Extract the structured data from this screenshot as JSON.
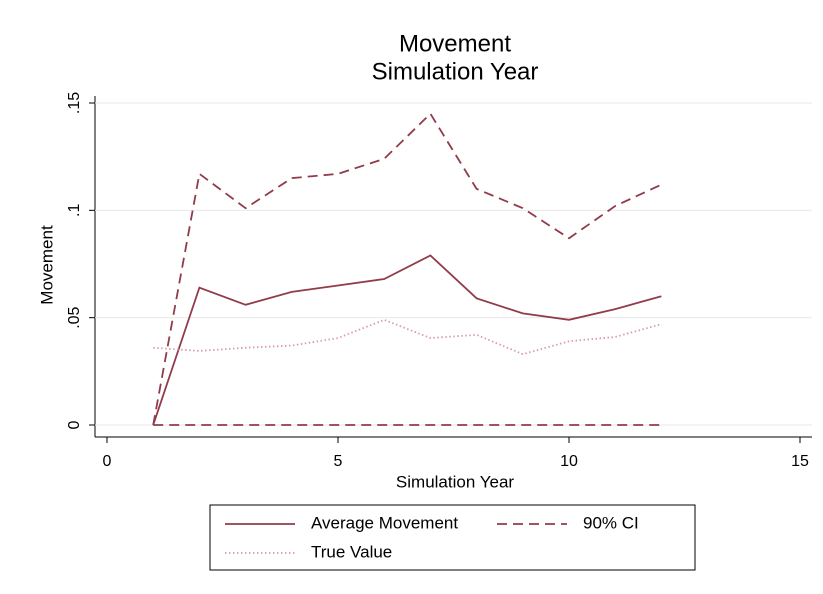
{
  "chart_data": {
    "type": "line",
    "title": "Movement",
    "subtitle": "Simulation Year",
    "x_label": "Simulation Year",
    "y_label": "Movement",
    "x": [
      1,
      2,
      3,
      4,
      5,
      6,
      7,
      8,
      9,
      10,
      11,
      12
    ],
    "series": [
      {
        "name": "Average Movement",
        "color": "#913c4a",
        "dash": "solid",
        "values": [
          0,
          0.064,
          0.056,
          0.062,
          0.065,
          0.068,
          0.079,
          0.059,
          0.052,
          0.049,
          0.054,
          0.06
        ]
      },
      {
        "name": "90% CI",
        "color": "#913c4a",
        "dash": "dash",
        "values": [
          0,
          0.117,
          0.101,
          0.115,
          0.117,
          0.124,
          0.145,
          0.11,
          0.101,
          0.087,
          0.102,
          0.112
        ],
        "lower": [
          0,
          0,
          0,
          0,
          0,
          0,
          0,
          0,
          0,
          0,
          0,
          0
        ]
      },
      {
        "name": "True Value",
        "color": "#d99ca4",
        "dash": "dot",
        "values": [
          0.036,
          0.0345,
          0.036,
          0.037,
          0.0405,
          0.049,
          0.0405,
          0.042,
          0.033,
          0.039,
          0.041,
          0.047
        ]
      }
    ],
    "xlim": [
      0,
      15
    ],
    "xticks": [
      0,
      5,
      10,
      15
    ],
    "ylim": [
      0,
      0.15
    ],
    "yticks": [
      0,
      {
        "value": 0.05,
        "label": ".05"
      },
      {
        "value": 0.1,
        "label": ".1"
      },
      {
        "value": 0.15,
        "label": ".15"
      }
    ],
    "grid": true,
    "legend": "bottom"
  }
}
